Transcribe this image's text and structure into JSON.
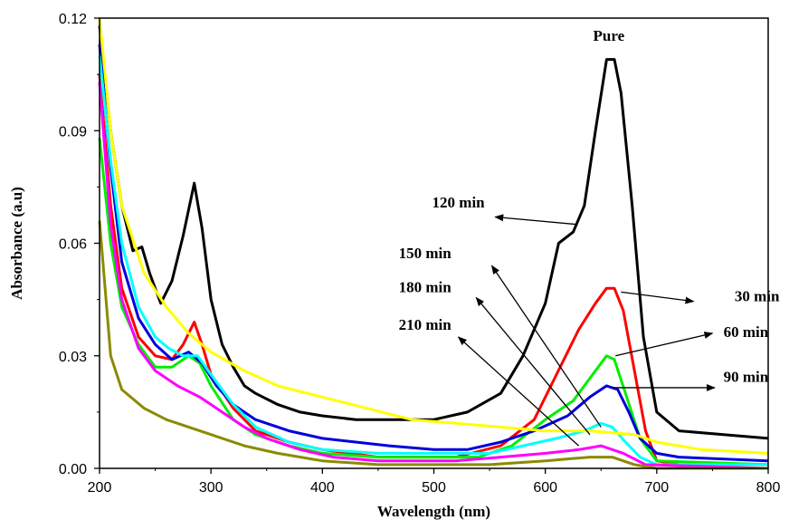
{
  "chart_data": {
    "type": "line",
    "title": "",
    "xlabel": "Wavelength (nm)",
    "ylabel": "Absorbance (a.u)",
    "xlim": [
      200,
      800
    ],
    "ylim": [
      0,
      0.12
    ],
    "xticks": [
      200,
      300,
      400,
      500,
      600,
      700,
      800
    ],
    "yticks": [
      0.0,
      0.03,
      0.06,
      0.09,
      0.12
    ],
    "xtick_labels": [
      "200",
      "300",
      "400",
      "500",
      "600",
      "700",
      "800"
    ],
    "ytick_labels": [
      "0.00",
      "0.03",
      "0.06",
      "0.09",
      "0.12"
    ],
    "grid": false,
    "series": [
      {
        "color": "#000000",
        "points": [
          [
            200,
            0.118
          ],
          [
            210,
            0.09
          ],
          [
            220,
            0.07
          ],
          [
            230,
            0.058
          ],
          [
            238,
            0.059
          ],
          [
            245,
            0.052
          ],
          [
            255,
            0.044
          ],
          [
            265,
            0.05
          ],
          [
            275,
            0.062
          ],
          [
            285,
            0.076
          ],
          [
            292,
            0.064
          ],
          [
            300,
            0.045
          ],
          [
            310,
            0.033
          ],
          [
            320,
            0.027
          ],
          [
            330,
            0.022
          ],
          [
            340,
            0.02
          ],
          [
            360,
            0.017
          ],
          [
            380,
            0.015
          ],
          [
            400,
            0.014
          ],
          [
            430,
            0.013
          ],
          [
            470,
            0.013
          ],
          [
            500,
            0.013
          ],
          [
            530,
            0.015
          ],
          [
            560,
            0.02
          ],
          [
            580,
            0.03
          ],
          [
            600,
            0.044
          ],
          [
            612,
            0.06
          ],
          [
            625,
            0.063
          ],
          [
            635,
            0.07
          ],
          [
            645,
            0.09
          ],
          [
            655,
            0.109
          ],
          [
            662,
            0.109
          ],
          [
            668,
            0.1
          ],
          [
            678,
            0.07
          ],
          [
            688,
            0.035
          ],
          [
            700,
            0.015
          ],
          [
            720,
            0.01
          ],
          [
            760,
            0.009
          ],
          [
            800,
            0.008
          ]
        ]
      },
      {
        "color": "#ff0000",
        "points": [
          [
            200,
            0.105
          ],
          [
            210,
            0.07
          ],
          [
            220,
            0.048
          ],
          [
            235,
            0.035
          ],
          [
            250,
            0.03
          ],
          [
            265,
            0.029
          ],
          [
            275,
            0.033
          ],
          [
            285,
            0.039
          ],
          [
            292,
            0.033
          ],
          [
            300,
            0.025
          ],
          [
            320,
            0.016
          ],
          [
            340,
            0.01
          ],
          [
            370,
            0.007
          ],
          [
            400,
            0.005
          ],
          [
            450,
            0.003
          ],
          [
            520,
            0.003
          ],
          [
            560,
            0.006
          ],
          [
            590,
            0.013
          ],
          [
            610,
            0.025
          ],
          [
            630,
            0.037
          ],
          [
            645,
            0.044
          ],
          [
            655,
            0.048
          ],
          [
            662,
            0.048
          ],
          [
            670,
            0.042
          ],
          [
            680,
            0.026
          ],
          [
            690,
            0.01
          ],
          [
            700,
            0.002
          ],
          [
            720,
            0.001
          ],
          [
            800,
            0.001
          ]
        ]
      },
      {
        "color": "#00ee00",
        "points": [
          [
            200,
            0.088
          ],
          [
            210,
            0.06
          ],
          [
            220,
            0.043
          ],
          [
            235,
            0.033
          ],
          [
            250,
            0.027
          ],
          [
            265,
            0.027
          ],
          [
            280,
            0.03
          ],
          [
            290,
            0.028
          ],
          [
            300,
            0.022
          ],
          [
            320,
            0.013
          ],
          [
            340,
            0.009
          ],
          [
            370,
            0.006
          ],
          [
            400,
            0.004
          ],
          [
            450,
            0.003
          ],
          [
            540,
            0.003
          ],
          [
            570,
            0.006
          ],
          [
            600,
            0.013
          ],
          [
            625,
            0.018
          ],
          [
            640,
            0.024
          ],
          [
            655,
            0.03
          ],
          [
            662,
            0.029
          ],
          [
            672,
            0.02
          ],
          [
            685,
            0.008
          ],
          [
            700,
            0.002
          ],
          [
            800,
            0.001
          ]
        ]
      },
      {
        "color": "#0000dd",
        "points": [
          [
            200,
            0.113
          ],
          [
            210,
            0.08
          ],
          [
            220,
            0.055
          ],
          [
            235,
            0.04
          ],
          [
            250,
            0.033
          ],
          [
            265,
            0.029
          ],
          [
            280,
            0.031
          ],
          [
            292,
            0.028
          ],
          [
            305,
            0.022
          ],
          [
            320,
            0.017
          ],
          [
            340,
            0.013
          ],
          [
            370,
            0.01
          ],
          [
            400,
            0.008
          ],
          [
            430,
            0.007
          ],
          [
            460,
            0.006
          ],
          [
            500,
            0.005
          ],
          [
            530,
            0.005
          ],
          [
            560,
            0.007
          ],
          [
            590,
            0.01
          ],
          [
            620,
            0.014
          ],
          [
            640,
            0.019
          ],
          [
            655,
            0.022
          ],
          [
            665,
            0.021
          ],
          [
            675,
            0.015
          ],
          [
            685,
            0.008
          ],
          [
            700,
            0.004
          ],
          [
            720,
            0.003
          ],
          [
            800,
            0.002
          ]
        ]
      },
      {
        "color": "#00ffff",
        "points": [
          [
            200,
            0.11
          ],
          [
            210,
            0.082
          ],
          [
            220,
            0.06
          ],
          [
            235,
            0.043
          ],
          [
            250,
            0.035
          ],
          [
            262,
            0.032
          ],
          [
            275,
            0.03
          ],
          [
            288,
            0.03
          ],
          [
            300,
            0.025
          ],
          [
            320,
            0.017
          ],
          [
            340,
            0.011
          ],
          [
            370,
            0.007
          ],
          [
            400,
            0.005
          ],
          [
            450,
            0.004
          ],
          [
            550,
            0.004
          ],
          [
            580,
            0.006
          ],
          [
            610,
            0.008
          ],
          [
            635,
            0.01
          ],
          [
            650,
            0.012
          ],
          [
            660,
            0.011
          ],
          [
            672,
            0.007
          ],
          [
            685,
            0.003
          ],
          [
            700,
            0.001
          ],
          [
            800,
            0.001
          ]
        ]
      },
      {
        "color": "#ff00ff",
        "points": [
          [
            200,
            0.103
          ],
          [
            210,
            0.065
          ],
          [
            220,
            0.045
          ],
          [
            235,
            0.032
          ],
          [
            250,
            0.026
          ],
          [
            270,
            0.022
          ],
          [
            290,
            0.019
          ],
          [
            310,
            0.015
          ],
          [
            330,
            0.011
          ],
          [
            350,
            0.008
          ],
          [
            380,
            0.005
          ],
          [
            410,
            0.003
          ],
          [
            450,
            0.002
          ],
          [
            520,
            0.002
          ],
          [
            560,
            0.003
          ],
          [
            600,
            0.004
          ],
          [
            630,
            0.005
          ],
          [
            650,
            0.006
          ],
          [
            670,
            0.004
          ],
          [
            690,
            0.001
          ],
          [
            800,
            0.0
          ]
        ]
      },
      {
        "color": "#ffff00",
        "points": [
          [
            200,
            0.12
          ],
          [
            210,
            0.09
          ],
          [
            220,
            0.07
          ],
          [
            240,
            0.052
          ],
          [
            260,
            0.043
          ],
          [
            280,
            0.036
          ],
          [
            300,
            0.031
          ],
          [
            330,
            0.026
          ],
          [
            360,
            0.022
          ],
          [
            400,
            0.019
          ],
          [
            440,
            0.016
          ],
          [
            480,
            0.013
          ],
          [
            520,
            0.012
          ],
          [
            560,
            0.011
          ],
          [
            600,
            0.01
          ],
          [
            640,
            0.01
          ],
          [
            680,
            0.009
          ],
          [
            700,
            0.007
          ],
          [
            740,
            0.005
          ],
          [
            800,
            0.004
          ]
        ]
      },
      {
        "color": "#8b8b00",
        "points": [
          [
            200,
            0.066
          ],
          [
            210,
            0.03
          ],
          [
            220,
            0.021
          ],
          [
            240,
            0.016
          ],
          [
            260,
            0.013
          ],
          [
            280,
            0.011
          ],
          [
            300,
            0.009
          ],
          [
            330,
            0.006
          ],
          [
            360,
            0.004
          ],
          [
            400,
            0.002
          ],
          [
            450,
            0.001
          ],
          [
            550,
            0.001
          ],
          [
            600,
            0.002
          ],
          [
            640,
            0.003
          ],
          [
            660,
            0.003
          ],
          [
            680,
            0.001
          ],
          [
            700,
            0.0
          ],
          [
            800,
            0.0
          ]
        ]
      }
    ],
    "annotations": [
      {
        "text": "Pure",
        "x": 657,
        "y": 0.114
      },
      {
        "text": "120 min",
        "x": 522,
        "y": 0.0695
      },
      {
        "text": "150 min",
        "x": 492,
        "y": 0.056
      },
      {
        "text": "180 min",
        "x": 492,
        "y": 0.047
      },
      {
        "text": "210 min",
        "x": 492,
        "y": 0.037
      },
      {
        "text": "30 min",
        "x": 790,
        "y": 0.0445
      },
      {
        "text": "60 min",
        "x": 780,
        "y": 0.035
      },
      {
        "text": "90 min",
        "x": 780,
        "y": 0.023
      }
    ],
    "arrows": [
      {
        "from": [
          629,
          0.065
        ],
        "to": [
          555,
          0.067
        ]
      },
      {
        "from": [
          650,
          0.011
        ],
        "to": [
          552,
          0.054
        ]
      },
      {
        "from": [
          640,
          0.009
        ],
        "to": [
          538,
          0.0455
        ]
      },
      {
        "from": [
          630,
          0.006
        ],
        "to": [
          522,
          0.035
        ]
      },
      {
        "from": [
          668,
          0.047
        ],
        "to": [
          733,
          0.0445
        ]
      },
      {
        "from": [
          663,
          0.03
        ],
        "to": [
          750,
          0.036
        ]
      },
      {
        "from": [
          660,
          0.0215
        ],
        "to": [
          752,
          0.0215
        ]
      }
    ]
  }
}
